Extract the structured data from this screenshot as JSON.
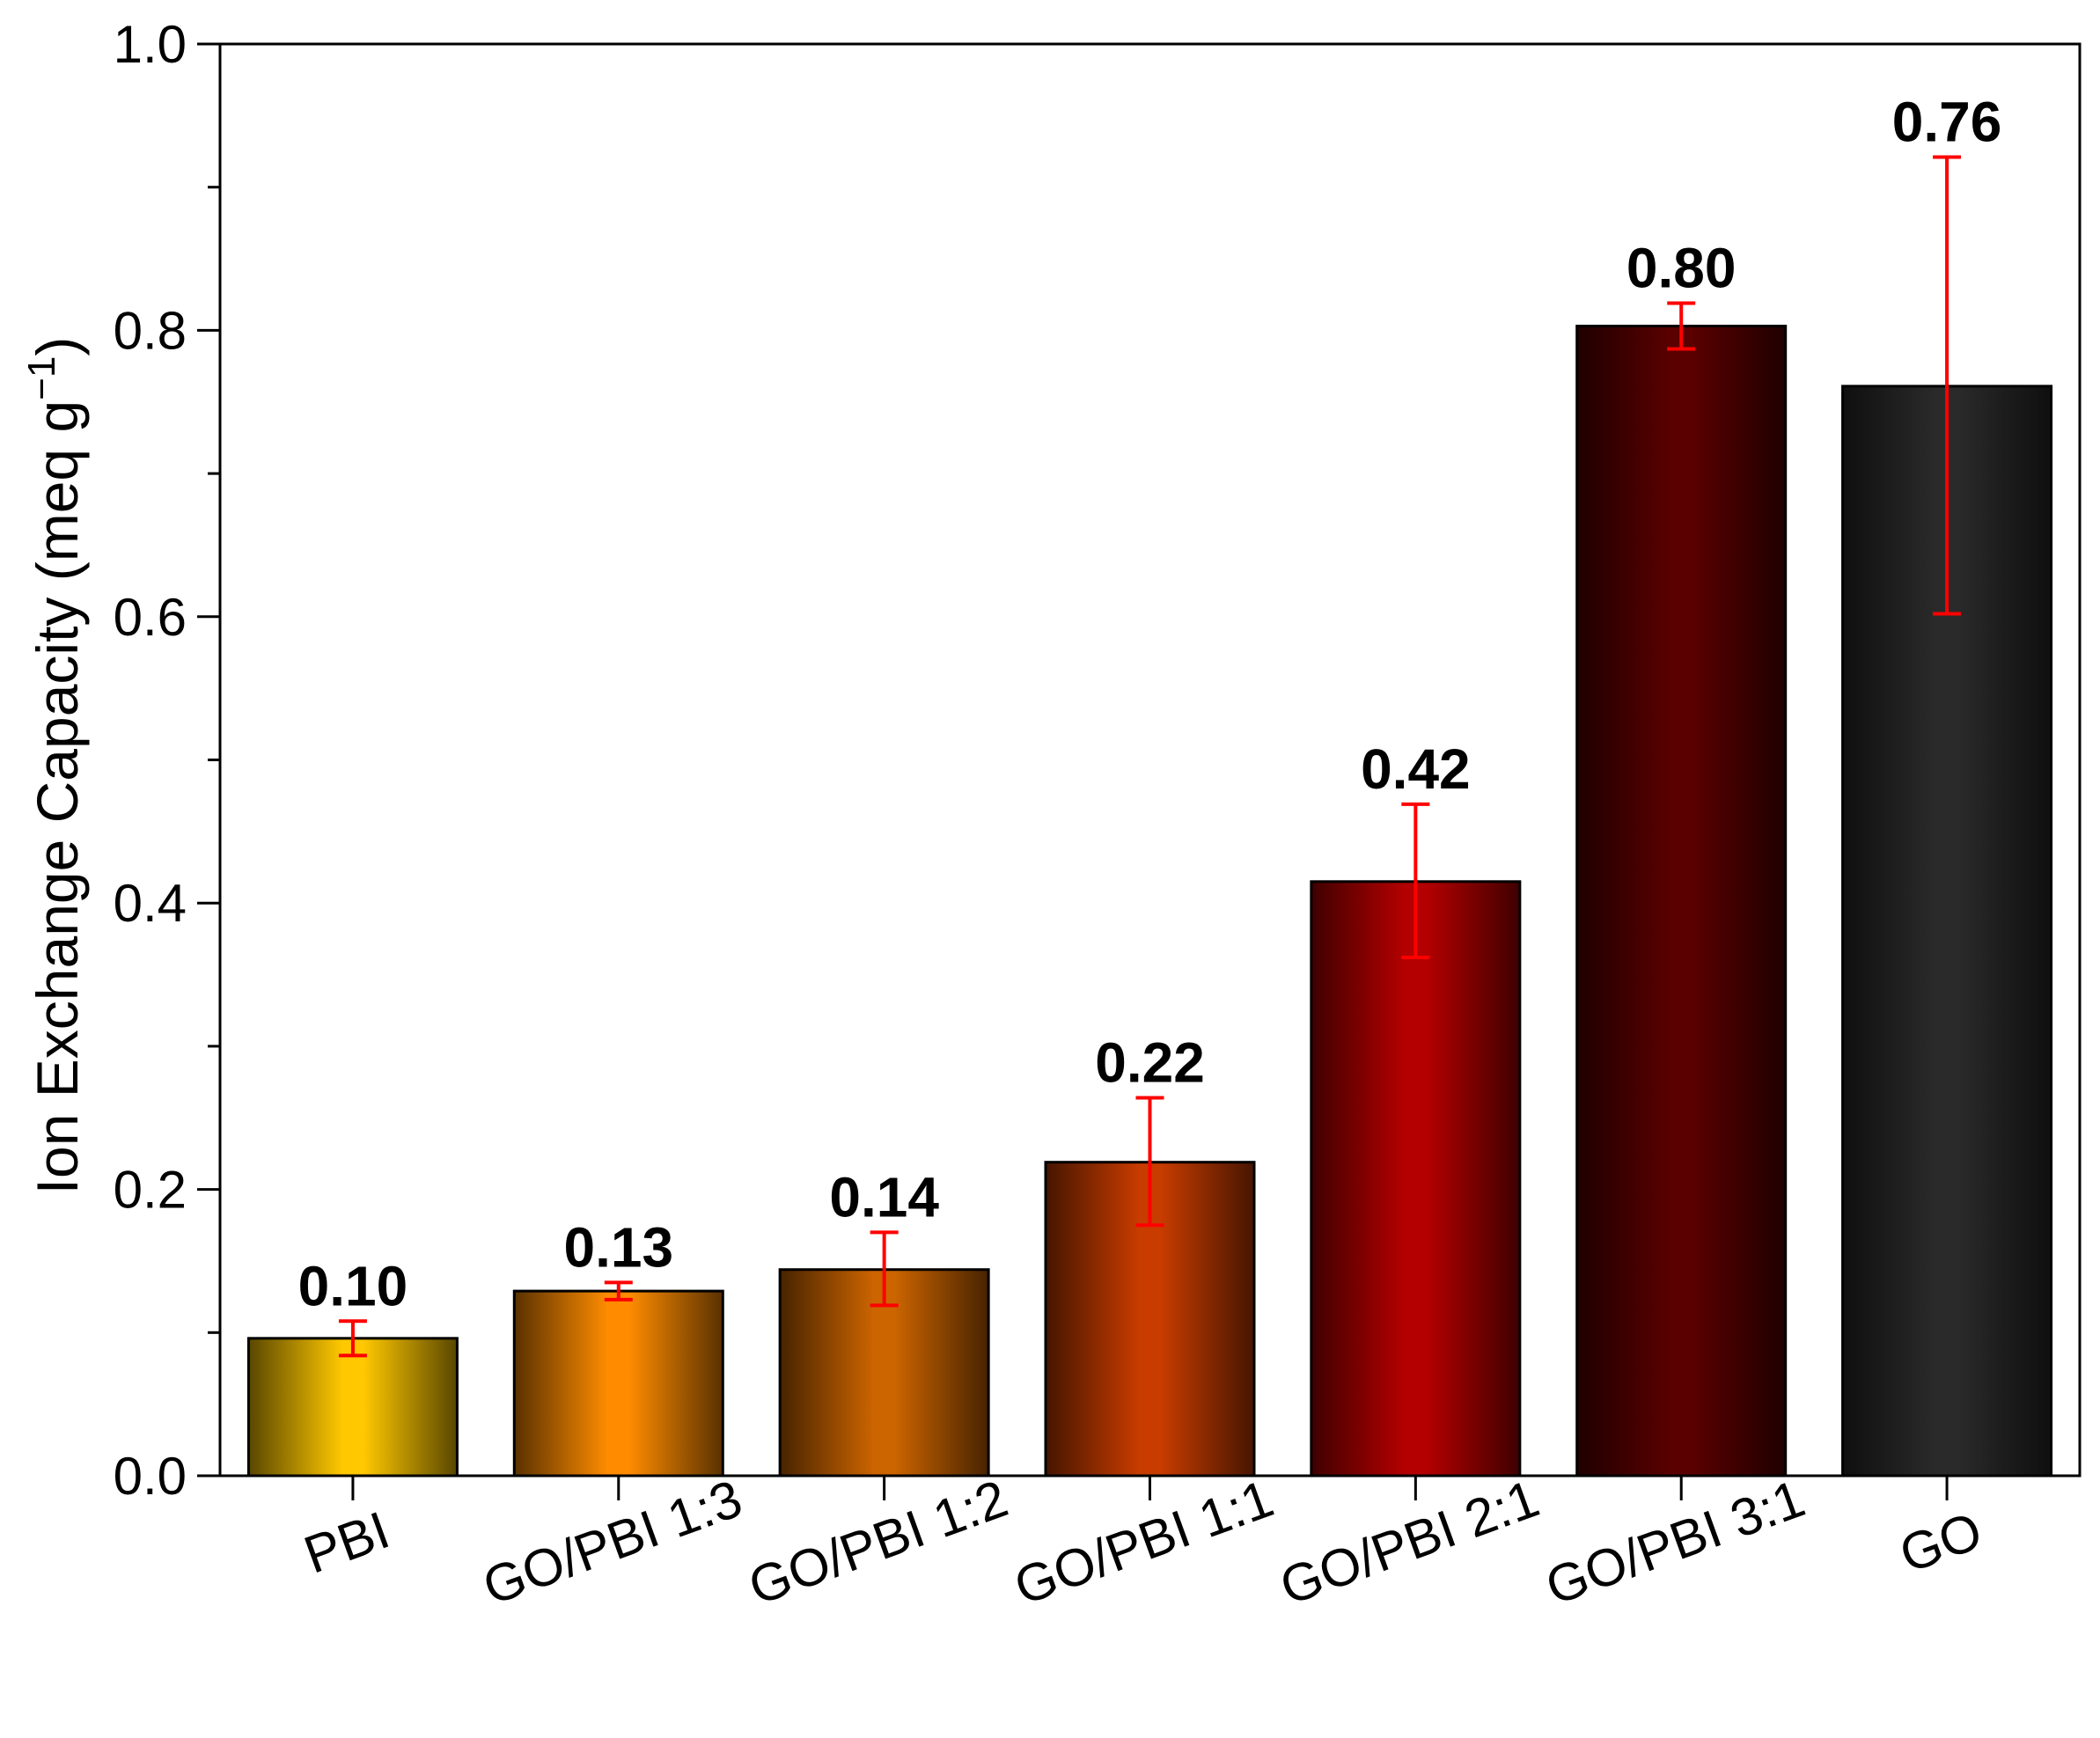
{
  "chart_data": {
    "type": "bar",
    "title": "",
    "xlabel": "",
    "ylabel": "Ion Exchange Capacity (meq g",
    "ylabel_superscript": "−1",
    "ylabel_close": ")",
    "ylim": [
      0.0,
      1.0
    ],
    "yticks": [
      0.0,
      0.2,
      0.4,
      0.6,
      0.8,
      1.0
    ],
    "ytick_labels": [
      "0.0",
      "0.2",
      "0.4",
      "0.6",
      "0.8",
      "1.0"
    ],
    "yminor_step": 0.1,
    "categories": [
      "PBI",
      "GO/PBI 1:3",
      "GO/PBI 1:2",
      "GO/PBI 1:1",
      "GO/PBI 2:1",
      "GO/PBI 3:1",
      "GO"
    ],
    "values": [
      0.096,
      0.129,
      0.144,
      0.219,
      0.415,
      0.803,
      0.761
    ],
    "error_low": [
      0.084,
      0.123,
      0.119,
      0.175,
      0.362,
      0.787,
      0.602
    ],
    "error_high": [
      0.108,
      0.135,
      0.17,
      0.264,
      0.469,
      0.819,
      0.921
    ],
    "data_labels": [
      "0.10",
      "0.13",
      "0.14",
      "0.22",
      "0.42",
      "0.80",
      "0.76"
    ],
    "grid": false,
    "legend": "none"
  },
  "colors": {
    "bars": [
      "#ffc800",
      "#ff8c00",
      "#cc6400",
      "#c83c00",
      "#b40000",
      "#5a0000",
      "#2a2a2a"
    ],
    "error_bar": "#ff0000",
    "axis": "#000000"
  }
}
